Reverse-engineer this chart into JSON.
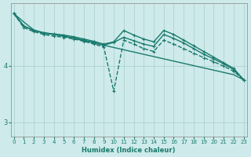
{
  "xlabel": "Humidex (Indice chaleur)",
  "background_color": "#ceeaea",
  "grid_color": "#aacece",
  "line_color": "#1a7a6e",
  "x_ticks": [
    0,
    1,
    2,
    3,
    4,
    5,
    6,
    7,
    8,
    9,
    10,
    11,
    12,
    13,
    14,
    15,
    16,
    17,
    18,
    19,
    20,
    21,
    22,
    23
  ],
  "y_ticks": [
    3,
    4
  ],
  "ylim": [
    2.75,
    5.1
  ],
  "xlim": [
    -0.3,
    23.3
  ],
  "series": [
    {
      "y": [
        4.92,
        4.77,
        4.63,
        4.58,
        4.55,
        4.52,
        4.48,
        4.44,
        4.4,
        4.36,
        4.32,
        4.28,
        4.24,
        4.2,
        4.16,
        4.12,
        4.08,
        4.04,
        4.0,
        3.96,
        3.92,
        3.88,
        3.84,
        3.75
      ],
      "linestyle": "-",
      "marker": null,
      "linewidth": 1.0
    },
    {
      "y": [
        4.92,
        4.67,
        4.6,
        4.55,
        4.52,
        4.5,
        4.47,
        4.43,
        4.38,
        4.33,
        3.55,
        4.45,
        4.38,
        4.3,
        4.25,
        4.45,
        4.38,
        4.3,
        4.22,
        4.14,
        4.07,
        3.99,
        3.9,
        3.75
      ],
      "linestyle": "--",
      "marker": "+",
      "linewidth": 1.0
    },
    {
      "y": [
        4.92,
        4.7,
        4.62,
        4.58,
        4.56,
        4.54,
        4.51,
        4.47,
        4.43,
        4.38,
        4.42,
        4.62,
        4.54,
        4.47,
        4.42,
        4.62,
        4.55,
        4.45,
        4.35,
        4.25,
        4.15,
        4.05,
        3.95,
        3.75
      ],
      "linestyle": "-",
      "marker": "+",
      "linewidth": 1.0
    },
    {
      "y": [
        4.92,
        4.7,
        4.62,
        4.57,
        4.55,
        4.52,
        4.49,
        4.45,
        4.41,
        4.36,
        4.41,
        4.5,
        4.44,
        4.38,
        4.34,
        4.55,
        4.48,
        4.4,
        4.3,
        4.2,
        4.12,
        4.03,
        3.93,
        3.75
      ],
      "linestyle": "-",
      "marker": "+",
      "linewidth": 1.0
    }
  ]
}
